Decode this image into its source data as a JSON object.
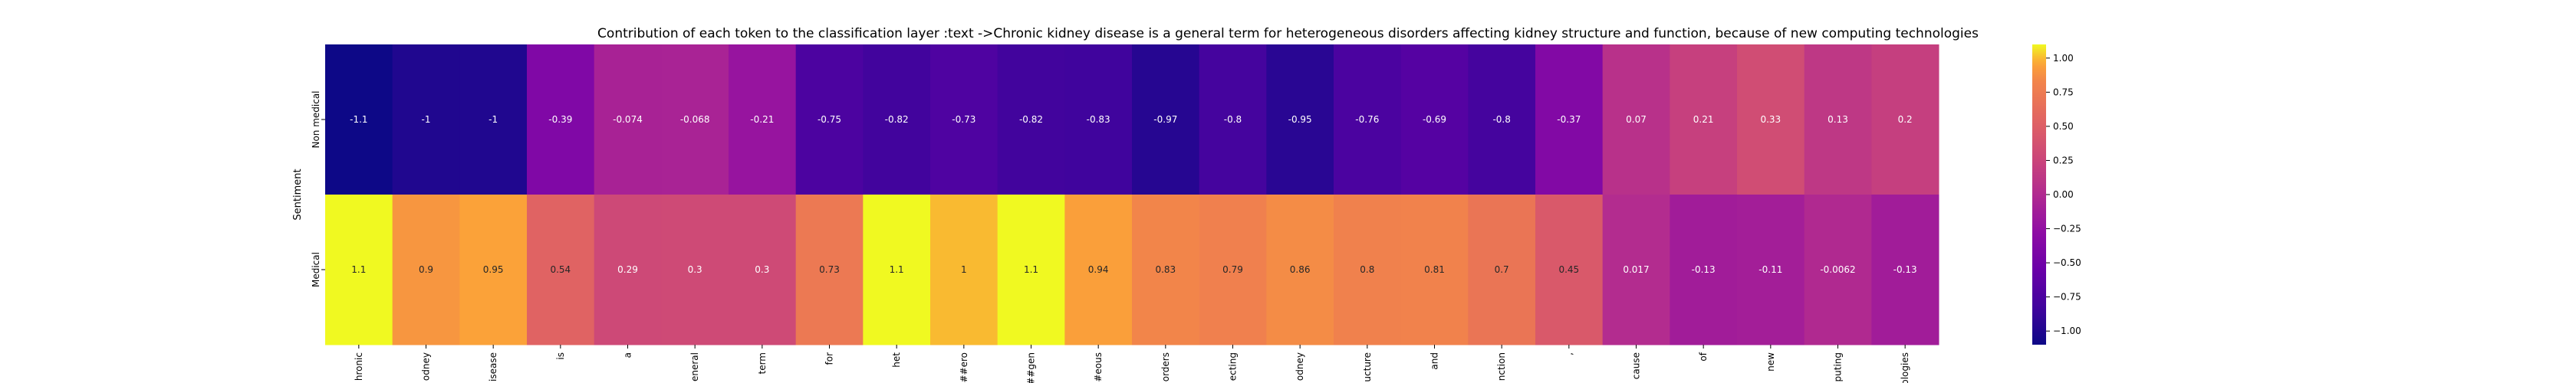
{
  "chart_data": {
    "type": "heatmap",
    "title": "Contribution of each token to the classification layer :text ->Chronic kidney disease is a general term for heterogeneous disorders affecting kidney structure and function, because of new computing technologies",
    "ylabel": "Sentiment",
    "xlabel": "",
    "rows": [
      "Non medical",
      "Medical"
    ],
    "columns": [
      "hronic",
      "odney",
      "isease",
      "is",
      "a",
      "eneral",
      "term",
      "for",
      "het",
      "##ero",
      "##gen",
      "#eous",
      "orders",
      "ecting",
      "odney",
      "ucture",
      "and",
      "nction",
      ",",
      "cause",
      "of",
      "new",
      "puting",
      "ologies"
    ],
    "values": [
      [
        -1.1,
        -1,
        -1,
        -0.39,
        -0.074,
        -0.068,
        -0.21,
        -0.75,
        -0.82,
        -0.73,
        -0.82,
        -0.83,
        -0.97,
        -0.8,
        -0.95,
        -0.76,
        -0.69,
        -0.8,
        -0.37,
        0.07,
        0.21,
        0.33,
        0.13,
        0.2
      ],
      [
        1.1,
        0.9,
        0.95,
        0.54,
        0.29,
        0.3,
        0.3,
        0.73,
        1.1,
        1,
        1.1,
        0.94,
        0.83,
        0.79,
        0.86,
        0.8,
        0.81,
        0.7,
        0.45,
        0.017,
        -0.13,
        -0.11,
        -0.0062,
        -0.13
      ]
    ],
    "value_labels": [
      [
        "-1.1",
        "-1",
        "-1",
        "-0.39",
        "-0.074",
        "-0.068",
        "-0.21",
        "-0.75",
        "-0.82",
        "-0.73",
        "-0.82",
        "-0.83",
        "-0.97",
        "-0.8",
        "-0.95",
        "-0.76",
        "-0.69",
        "-0.8",
        "-0.37",
        "0.07",
        "0.21",
        "0.33",
        "0.13",
        "0.2"
      ],
      [
        "1.1",
        "0.9",
        "0.95",
        "0.54",
        "0.29",
        "0.3",
        "0.3",
        "0.73",
        "1.1",
        "1",
        "1.1",
        "0.94",
        "0.83",
        "0.79",
        "0.86",
        "0.8",
        "0.81",
        "0.7",
        "0.45",
        "0.017",
        "-0.13",
        "-0.11",
        "-0.0062",
        "-0.13"
      ]
    ],
    "colormap": "plasma",
    "colorbar": {
      "range": [
        -1.1,
        1.1
      ],
      "ticks": [
        1.0,
        0.75,
        0.5,
        0.25,
        0.0,
        -0.25,
        -0.5,
        -0.75,
        -1.0
      ],
      "tick_labels": [
        "1.00",
        "0.75",
        "0.50",
        "0.25",
        "0.00",
        "−0.25",
        "−0.50",
        "−0.75",
        "−1.00"
      ],
      "position": "right"
    },
    "grid": false
  }
}
